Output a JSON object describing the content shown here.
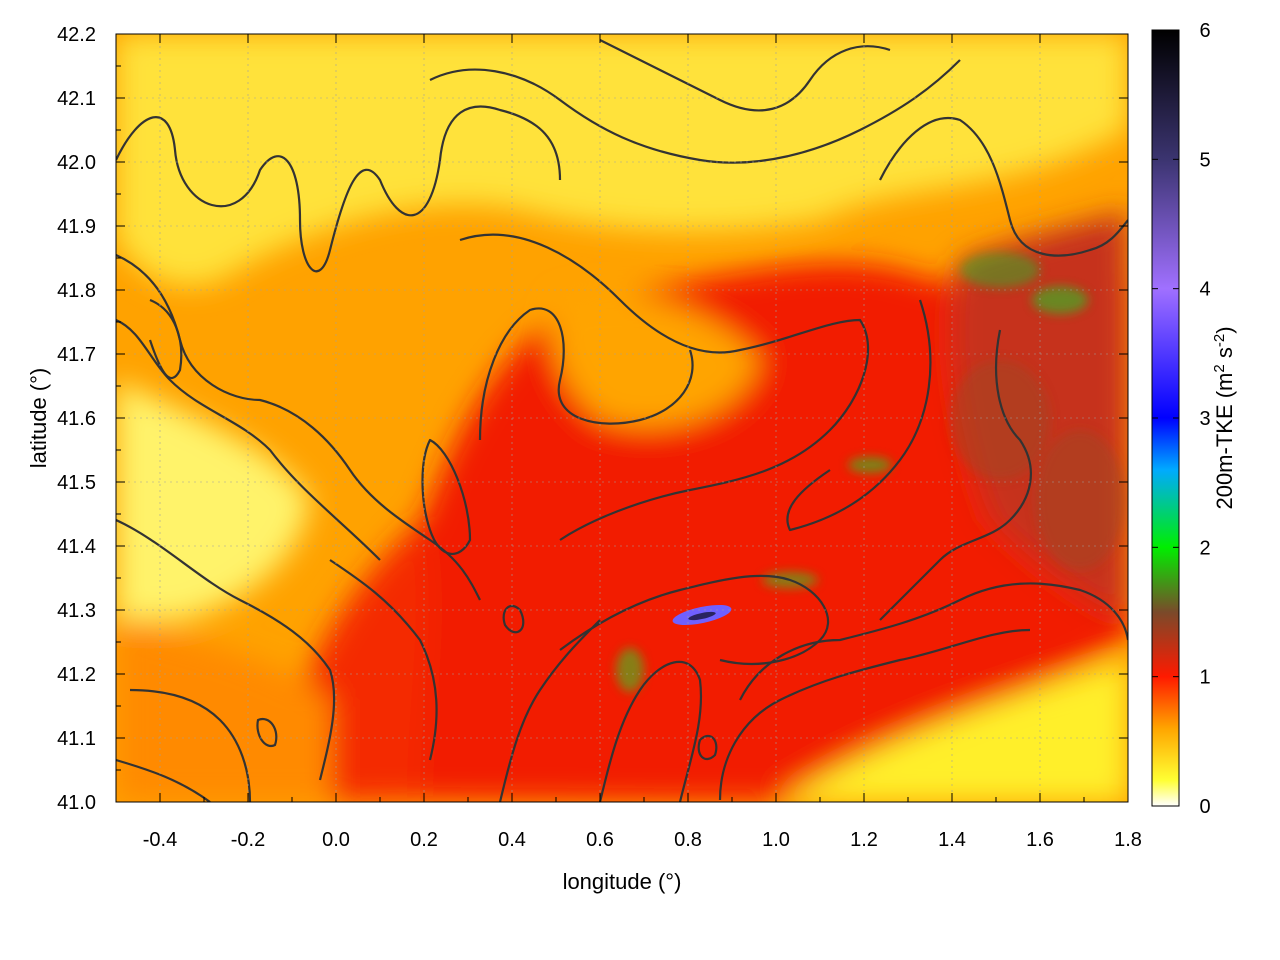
{
  "chart_data": {
    "type": "heatmap",
    "title": "",
    "xlabel": "longitude (°)",
    "ylabel": "latitude (°)",
    "xlim": [
      -0.5,
      1.8
    ],
    "ylim": [
      41.0,
      42.2
    ],
    "x_ticks": [
      -0.4,
      -0.2,
      0.0,
      0.2,
      0.4,
      0.6,
      0.8,
      1.0,
      1.2,
      1.4,
      1.6,
      1.8
    ],
    "x_tick_labels": [
      "-0.4",
      "-0.2",
      "0.0",
      "0.2",
      "0.4",
      "0.6",
      "0.8",
      "1.0",
      "1.2",
      "1.4",
      "1.6",
      "1.8"
    ],
    "y_ticks": [
      41.0,
      41.1,
      41.2,
      41.3,
      41.4,
      41.5,
      41.6,
      41.7,
      41.8,
      41.9,
      42.0,
      42.1,
      42.2
    ],
    "y_tick_labels": [
      "41.0",
      "41.1",
      "41.2",
      "41.3",
      "41.4",
      "41.5",
      "41.6",
      "41.7",
      "41.8",
      "41.9",
      "42.0",
      "42.1",
      "42.2"
    ],
    "grid": true,
    "colorbar": {
      "label_main": "200m-TKE (m",
      "label_sup1": "2",
      "label_mid": " s",
      "label_sup2": "-2",
      "label_end": ")",
      "range": [
        0,
        6
      ],
      "ticks": [
        0,
        1,
        2,
        3,
        4,
        5,
        6
      ],
      "tick_labels": [
        "0",
        "1",
        "2",
        "3",
        "4",
        "5",
        "6"
      ],
      "stops": [
        {
          "value": 0.0,
          "color": "#ffffff"
        },
        {
          "value": 0.2,
          "color": "#ffff33"
        },
        {
          "value": 0.6,
          "color": "#ffa500"
        },
        {
          "value": 1.0,
          "color": "#ff1a00"
        },
        {
          "value": 1.5,
          "color": "#7a4a2a"
        },
        {
          "value": 2.0,
          "color": "#00ee00"
        },
        {
          "value": 2.6,
          "color": "#00aaff"
        },
        {
          "value": 3.0,
          "color": "#0000ff"
        },
        {
          "value": 4.0,
          "color": "#a070ff"
        },
        {
          "value": 5.0,
          "color": "#3b3470"
        },
        {
          "value": 6.0,
          "color": "#000000"
        }
      ]
    },
    "regions": [
      {
        "name": "low-tke-west",
        "tke": 0.2,
        "lon": [
          -0.45,
          0.05
        ],
        "lat": [
          41.25,
          41.6
        ]
      },
      {
        "name": "northern-band",
        "tke": 0.35,
        "lon": [
          -0.3,
          1.4
        ],
        "lat": [
          41.85,
          42.18
        ]
      },
      {
        "name": "central-valley",
        "tke": 1.1,
        "lon": [
          0.25,
          1.1
        ],
        "lat": [
          41.15,
          41.75
        ]
      },
      {
        "name": "eastern-rough",
        "tke": 1.4,
        "lon": [
          1.15,
          1.78
        ],
        "lat": [
          41.3,
          41.9
        ]
      },
      {
        "name": "coastal-sea",
        "tke": 0.15,
        "lon": [
          0.95,
          1.8
        ],
        "lat": [
          41.0,
          41.15
        ]
      },
      {
        "name": "peak-cell",
        "tke": 4.0,
        "lon": [
          0.75,
          0.88
        ],
        "lat": [
          41.27,
          41.31
        ]
      }
    ],
    "contours": "terrain elevation isolines (dark grey), unlabeled"
  }
}
